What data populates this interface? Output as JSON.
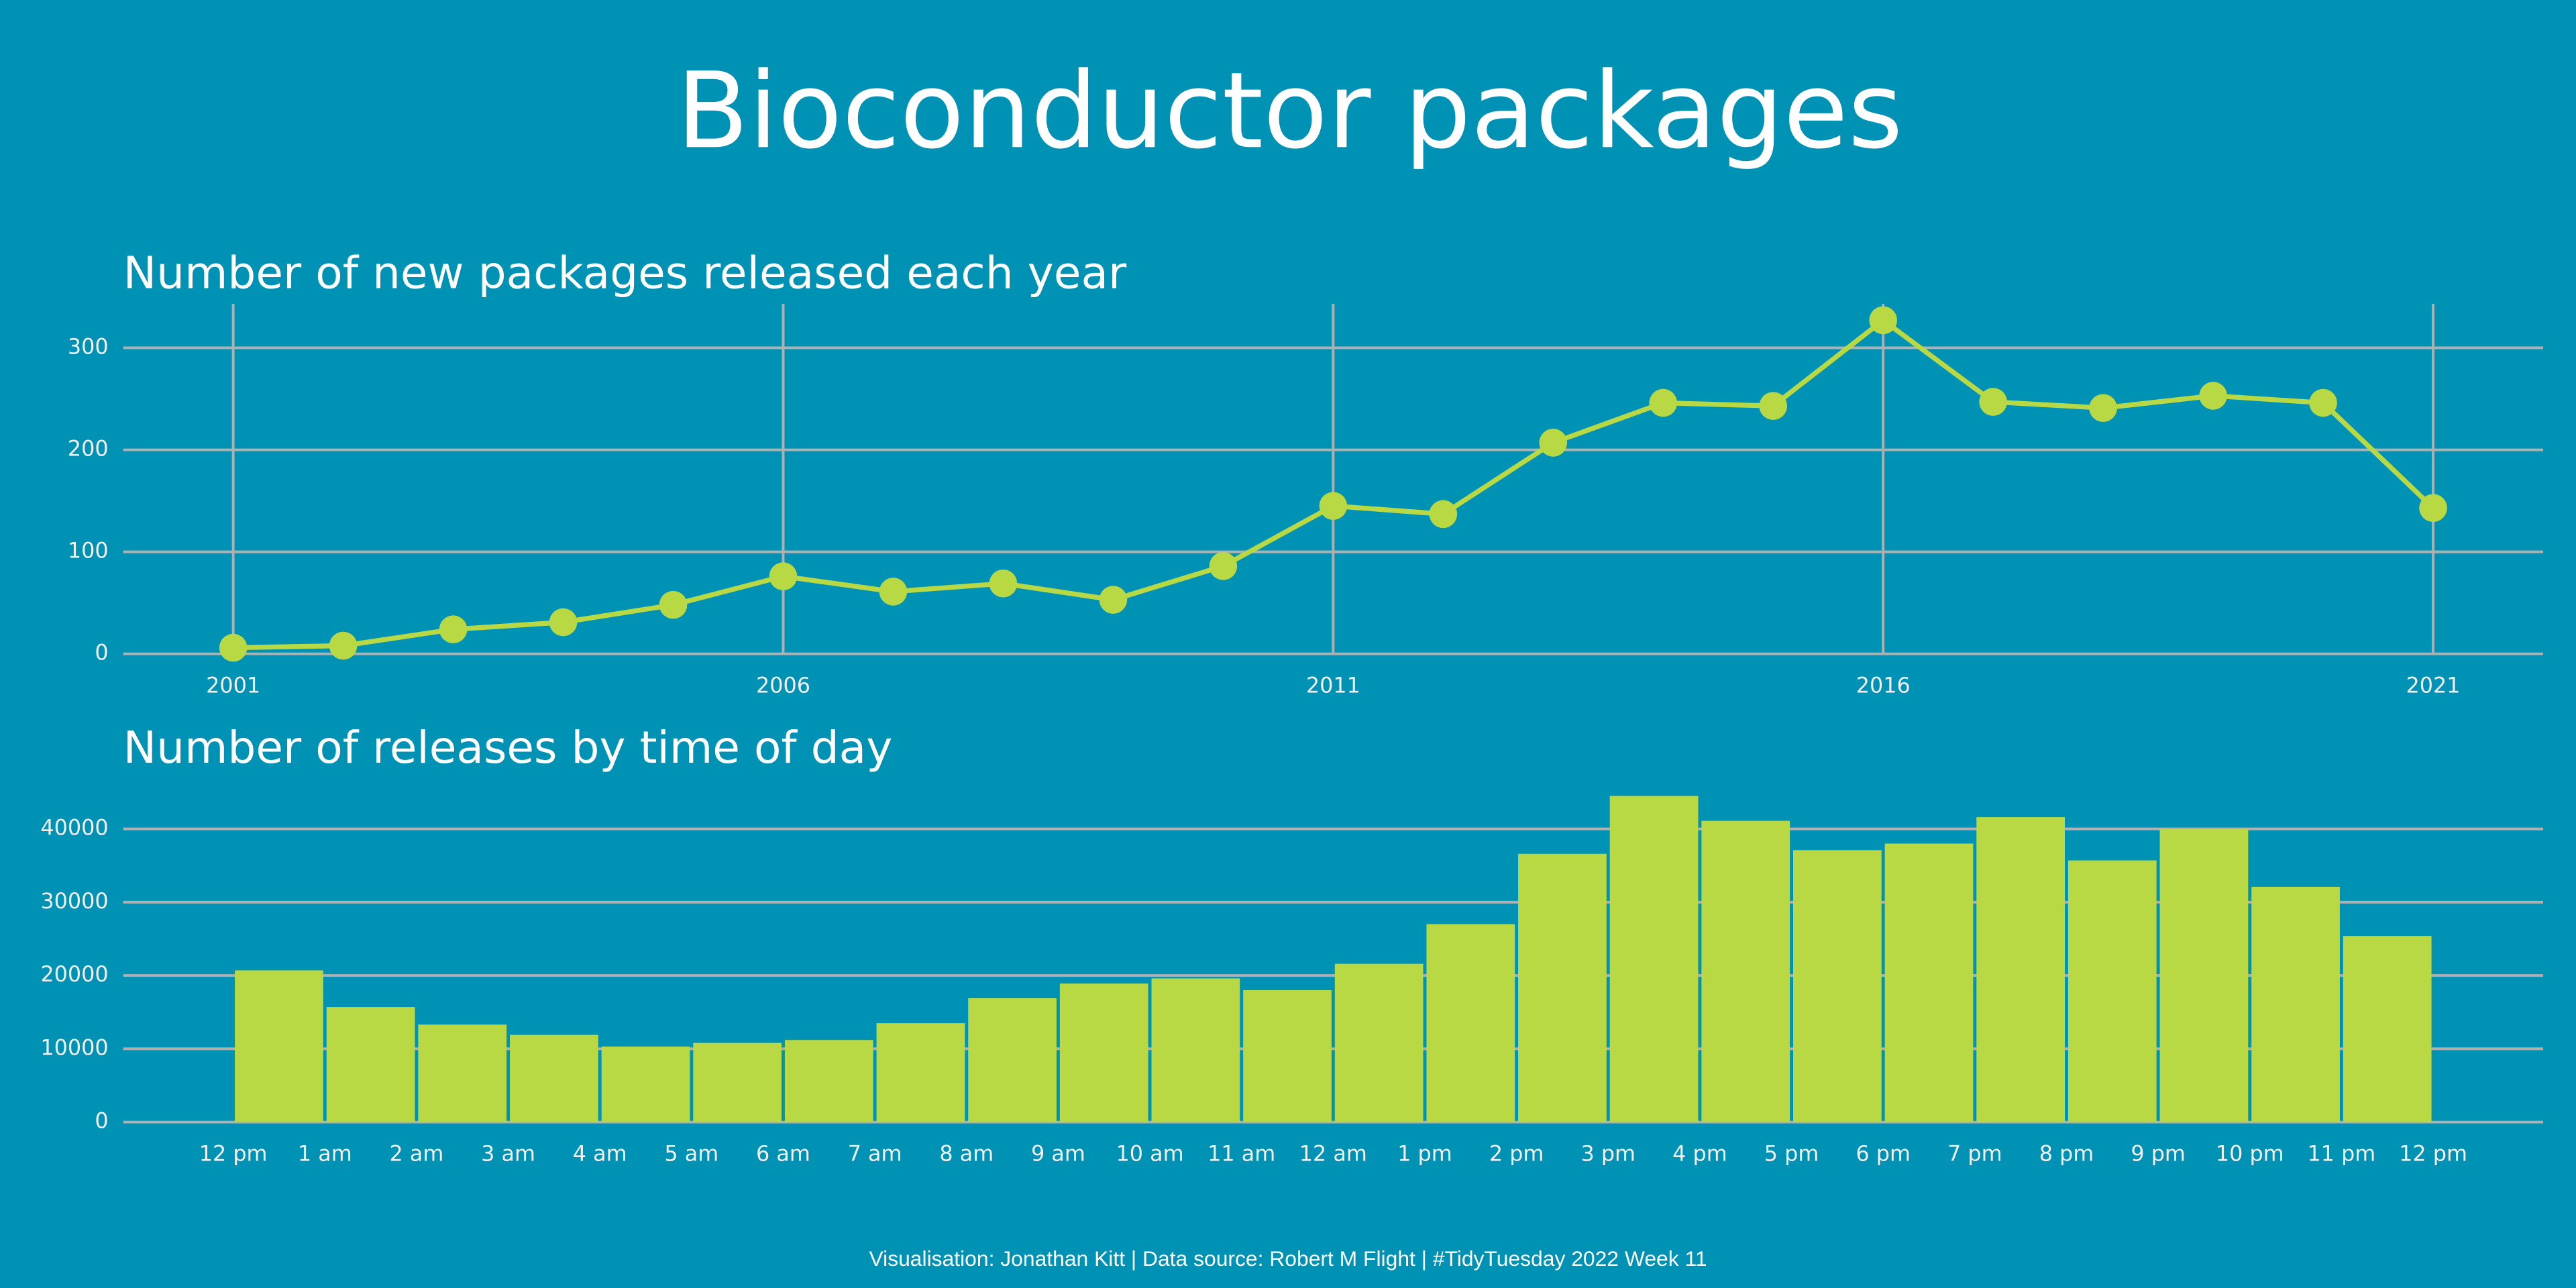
{
  "title": "Bioconductor packages",
  "caption": "Visualisation: Jonathan Kitt | Data source: Robert M Flight | #TidyTuesday 2022 Week 11",
  "chart_data": [
    {
      "type": "line",
      "title": "Number of new packages released each year",
      "x": [
        2001,
        2002,
        2003,
        2004,
        2005,
        2006,
        2007,
        2008,
        2009,
        2010,
        2011,
        2012,
        2013,
        2014,
        2015,
        2016,
        2017,
        2018,
        2019,
        2020,
        2021
      ],
      "values": [
        6,
        8,
        24,
        31,
        48,
        76,
        61,
        69,
        53,
        86,
        145,
        137,
        207,
        246,
        243,
        327,
        247,
        241,
        253,
        246,
        143
      ],
      "color": "#b8d944",
      "xlim": [
        2000,
        2022
      ],
      "xticks": [
        2001,
        2006,
        2011,
        2016,
        2021
      ],
      "ylim": [
        0,
        343
      ],
      "yticks": [
        0,
        100,
        200,
        300
      ],
      "grid": true
    },
    {
      "type": "histogram",
      "title": "Number of releases by time of day",
      "bins": [
        0,
        1,
        2,
        3,
        4,
        5,
        6,
        7,
        8,
        9,
        10,
        11,
        12,
        13,
        14,
        15,
        16,
        17,
        18,
        19,
        20,
        21,
        22,
        23,
        24
      ],
      "values": [
        20700,
        15700,
        13300,
        11900,
        10300,
        10800,
        11200,
        13500,
        16900,
        18900,
        19600,
        18000,
        21600,
        27000,
        36600,
        44500,
        41100,
        37100,
        38000,
        41600,
        35700,
        40000,
        32100,
        25400
      ],
      "color": "#b8d944",
      "xlim": [
        -1.2,
        25.2
      ],
      "xticks": [
        {
          "value": 0,
          "label": "12 pm"
        },
        {
          "value": 1,
          "label": "1 am"
        },
        {
          "value": 2,
          "label": "2 am"
        },
        {
          "value": 3,
          "label": "3 am"
        },
        {
          "value": 4,
          "label": "4 am"
        },
        {
          "value": 5,
          "label": "5 am"
        },
        {
          "value": 6,
          "label": "6 am"
        },
        {
          "value": 7,
          "label": "7 am"
        },
        {
          "value": 8,
          "label": "8 am"
        },
        {
          "value": 9,
          "label": "9 am"
        },
        {
          "value": 10,
          "label": "10 am"
        },
        {
          "value": 11,
          "label": "11 am"
        },
        {
          "value": 12,
          "label": "12 am"
        },
        {
          "value": 13,
          "label": "1 pm"
        },
        {
          "value": 14,
          "label": "2 pm"
        },
        {
          "value": 15,
          "label": "3 pm"
        },
        {
          "value": 16,
          "label": "4 pm"
        },
        {
          "value": 17,
          "label": "5 pm"
        },
        {
          "value": 18,
          "label": "6 pm"
        },
        {
          "value": 19,
          "label": "7 pm"
        },
        {
          "value": 20,
          "label": "8 pm"
        },
        {
          "value": 21,
          "label": "9 pm"
        },
        {
          "value": 22,
          "label": "10 pm"
        },
        {
          "value": 23,
          "label": "11 pm"
        },
        {
          "value": 24,
          "label": "12 pm"
        }
      ],
      "ylim": [
        0,
        45500
      ],
      "yticks": [
        0,
        10000,
        20000,
        30000,
        40000
      ],
      "grid": true
    }
  ]
}
